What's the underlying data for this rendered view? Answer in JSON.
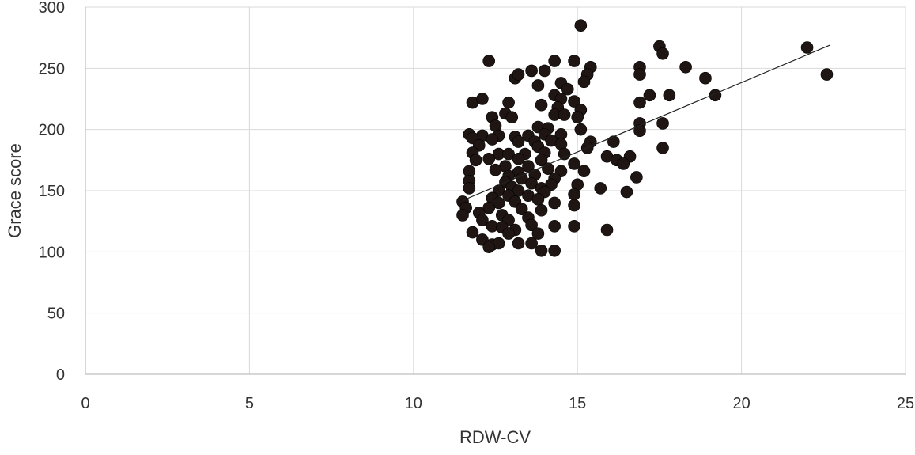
{
  "chart_data": {
    "type": "scatter",
    "xlabel": "RDW-CV",
    "ylabel": "Grace score",
    "xlim": [
      0,
      25
    ],
    "ylim": [
      0,
      300
    ],
    "x_ticks": [
      "0",
      "5",
      "10",
      "15",
      "20",
      "25"
    ],
    "y_ticks": [
      "0",
      "50",
      "100",
      "150",
      "200",
      "250",
      "300"
    ],
    "grid": true,
    "legend": "none",
    "marker_color": "#1f1614",
    "trendline": {
      "x": [
        11.5,
        22.7
      ],
      "y": [
        142,
        269
      ]
    },
    "points": [
      [
        15.1,
        285
      ],
      [
        17.5,
        268
      ],
      [
        22.0,
        267
      ],
      [
        17.6,
        262
      ],
      [
        12.3,
        256
      ],
      [
        14.3,
        256
      ],
      [
        14.9,
        256
      ],
      [
        15.4,
        251
      ],
      [
        16.9,
        251
      ],
      [
        18.3,
        251
      ],
      [
        13.6,
        248
      ],
      [
        14.0,
        248
      ],
      [
        13.1,
        242
      ],
      [
        13.2,
        245
      ],
      [
        15.3,
        245
      ],
      [
        16.9,
        245
      ],
      [
        18.9,
        242
      ],
      [
        22.6,
        245
      ],
      [
        14.5,
        238
      ],
      [
        13.8,
        236
      ],
      [
        15.2,
        239
      ],
      [
        14.7,
        233
      ],
      [
        14.3,
        228
      ],
      [
        17.2,
        228
      ],
      [
        17.8,
        228
      ],
      [
        19.2,
        228
      ],
      [
        11.8,
        222
      ],
      [
        12.1,
        225
      ],
      [
        13.9,
        220
      ],
      [
        14.5,
        225
      ],
      [
        14.9,
        223
      ],
      [
        16.9,
        222
      ],
      [
        12.9,
        222
      ],
      [
        14.4,
        218
      ],
      [
        15.1,
        216
      ],
      [
        12.8,
        213
      ],
      [
        12.4,
        210
      ],
      [
        13.0,
        210
      ],
      [
        14.3,
        212
      ],
      [
        14.6,
        212
      ],
      [
        15.0,
        210
      ],
      [
        17.6,
        205
      ],
      [
        16.9,
        205
      ],
      [
        12.5,
        203
      ],
      [
        13.8,
        202
      ],
      [
        14.1,
        201
      ],
      [
        15.1,
        200
      ],
      [
        16.9,
        199
      ],
      [
        11.7,
        196
      ],
      [
        12.1,
        195
      ],
      [
        12.6,
        195
      ],
      [
        13.1,
        194
      ],
      [
        13.5,
        195
      ],
      [
        14.0,
        196
      ],
      [
        14.5,
        196
      ],
      [
        11.8,
        193
      ],
      [
        12.4,
        192
      ],
      [
        13.2,
        190
      ],
      [
        13.7,
        190
      ],
      [
        14.2,
        191
      ],
      [
        15.4,
        190
      ],
      [
        16.1,
        190
      ],
      [
        14.5,
        188
      ],
      [
        12.0,
        187
      ],
      [
        13.8,
        186
      ],
      [
        15.3,
        185
      ],
      [
        17.6,
        185
      ],
      [
        11.8,
        181
      ],
      [
        12.6,
        180
      ],
      [
        12.9,
        180
      ],
      [
        13.4,
        180
      ],
      [
        14.0,
        181
      ],
      [
        14.6,
        180
      ],
      [
        15.9,
        178
      ],
      [
        16.6,
        178
      ],
      [
        12.3,
        176
      ],
      [
        13.2,
        176
      ],
      [
        13.9,
        175
      ],
      [
        16.2,
        175
      ],
      [
        11.9,
        175
      ],
      [
        16.4,
        172
      ],
      [
        14.9,
        172
      ],
      [
        12.8,
        170
      ],
      [
        13.5,
        170
      ],
      [
        14.1,
        168
      ],
      [
        12.5,
        167
      ],
      [
        11.7,
        166
      ],
      [
        15.2,
        166
      ],
      [
        13.2,
        165
      ],
      [
        13.7,
        163
      ],
      [
        14.5,
        166
      ],
      [
        12.9,
        162
      ],
      [
        13.3,
        160
      ],
      [
        14.3,
        160
      ],
      [
        16.8,
        161
      ],
      [
        11.7,
        158
      ],
      [
        12.8,
        157
      ],
      [
        13.6,
        156
      ],
      [
        14.2,
        155
      ],
      [
        15.0,
        155
      ],
      [
        11.7,
        152
      ],
      [
        13.0,
        153
      ],
      [
        13.9,
        152
      ],
      [
        15.7,
        152
      ],
      [
        12.6,
        150
      ],
      [
        13.2,
        150
      ],
      [
        14.0,
        149
      ],
      [
        16.5,
        149
      ],
      [
        12.9,
        146
      ],
      [
        13.5,
        146
      ],
      [
        14.9,
        147
      ],
      [
        12.4,
        144
      ],
      [
        13.1,
        141
      ],
      [
        13.8,
        143
      ],
      [
        11.5,
        141
      ],
      [
        12.6,
        140
      ],
      [
        14.3,
        140
      ],
      [
        14.9,
        138
      ],
      [
        11.6,
        136
      ],
      [
        12.3,
        136
      ],
      [
        13.3,
        135
      ],
      [
        13.9,
        134
      ],
      [
        12.0,
        132
      ],
      [
        12.7,
        130
      ],
      [
        11.5,
        130
      ],
      [
        13.5,
        128
      ],
      [
        12.1,
        126
      ],
      [
        12.9,
        126
      ],
      [
        13.6,
        122
      ],
      [
        14.3,
        121
      ],
      [
        14.9,
        121
      ],
      [
        12.4,
        121
      ],
      [
        12.7,
        120
      ],
      [
        13.1,
        118
      ],
      [
        15.9,
        118
      ],
      [
        11.8,
        116
      ],
      [
        12.9,
        115
      ],
      [
        13.8,
        115
      ],
      [
        12.1,
        110
      ],
      [
        12.4,
        106
      ],
      [
        13.2,
        107
      ],
      [
        13.6,
        107
      ],
      [
        12.6,
        107
      ],
      [
        12.3,
        104
      ],
      [
        13.9,
        101
      ],
      [
        14.3,
        101
      ]
    ]
  }
}
